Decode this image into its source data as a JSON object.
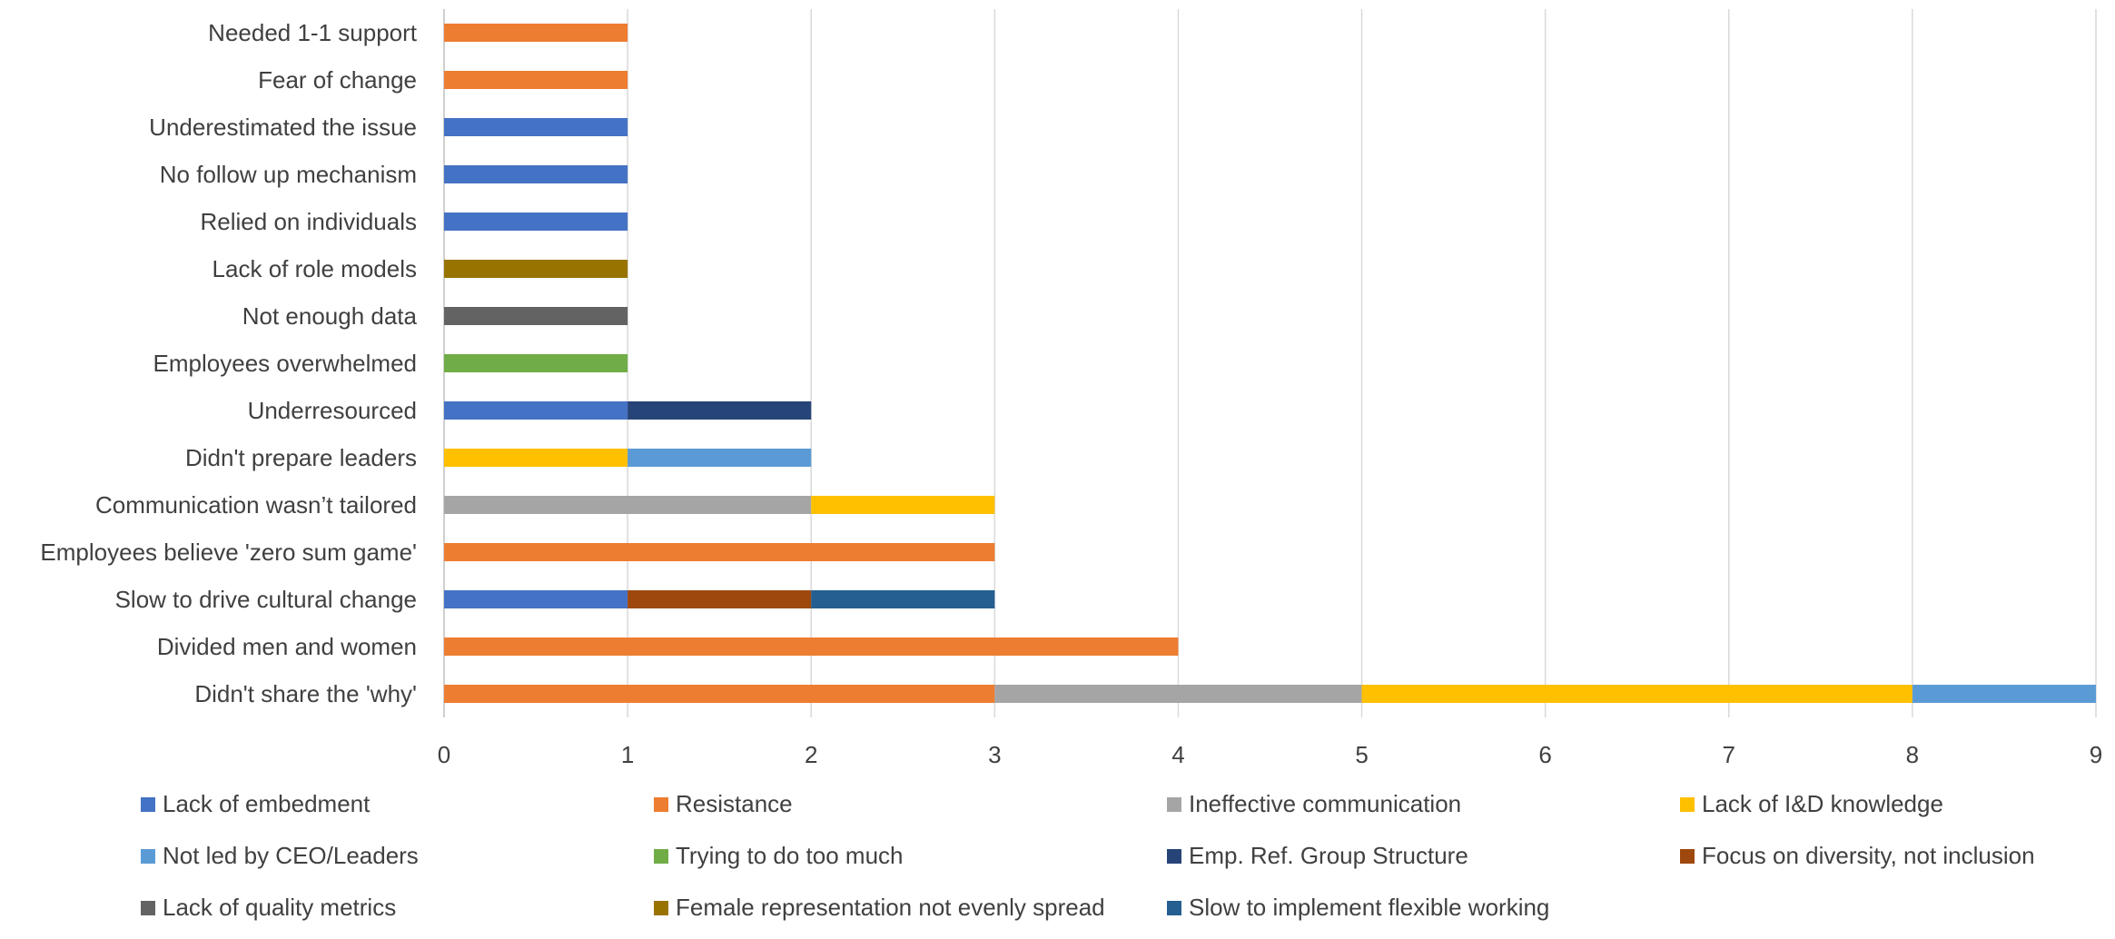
{
  "chart_data": {
    "type": "bar",
    "orientation": "horizontal",
    "stacked": true,
    "categories": [
      "Needed 1-1 support",
      "Fear of change",
      "Underestimated the issue",
      "No follow up mechanism",
      "Relied on individuals",
      "Lack of role models",
      "Not enough data",
      "Employees overwhelmed",
      "Underresourced",
      "Didn't prepare leaders",
      "Communication wasn’t tailored",
      "Employees believe 'zero sum game'",
      "Slow to drive cultural change",
      "Divided men and women",
      "Didn't share the 'why'"
    ],
    "series": [
      {
        "name": "Lack of embedment",
        "color": "#4472C4",
        "values": [
          0,
          0,
          1,
          1,
          1,
          0,
          0,
          0,
          1,
          0,
          0,
          0,
          1,
          0,
          0
        ]
      },
      {
        "name": "Resistance",
        "color": "#ED7D31",
        "values": [
          1,
          1,
          0,
          0,
          0,
          0,
          0,
          0,
          0,
          0,
          0,
          3,
          0,
          4,
          3
        ]
      },
      {
        "name": "Ineffective communication",
        "color": "#A5A5A5",
        "values": [
          0,
          0,
          0,
          0,
          0,
          0,
          0,
          0,
          0,
          0,
          2,
          0,
          0,
          0,
          2
        ]
      },
      {
        "name": "Lack of I&D knowledge",
        "color": "#FFC000",
        "values": [
          0,
          0,
          0,
          0,
          0,
          0,
          0,
          0,
          0,
          1,
          1,
          0,
          0,
          0,
          3
        ]
      },
      {
        "name": "Not led by CEO/Leaders",
        "color": "#5B9BD5",
        "values": [
          0,
          0,
          0,
          0,
          0,
          0,
          0,
          0,
          0,
          1,
          0,
          0,
          0,
          0,
          1
        ]
      },
      {
        "name": "Trying to do too much",
        "color": "#70AD47",
        "values": [
          0,
          0,
          0,
          0,
          0,
          0,
          0,
          1,
          0,
          0,
          0,
          0,
          0,
          0,
          0
        ]
      },
      {
        "name": "Emp. Ref. Group Structure",
        "color": "#264478",
        "values": [
          0,
          0,
          0,
          0,
          0,
          0,
          0,
          0,
          1,
          0,
          0,
          0,
          0,
          0,
          0
        ]
      },
      {
        "name": "Focus on diversity, not inclusion",
        "color": "#9E480E",
        "values": [
          0,
          0,
          0,
          0,
          0,
          0,
          0,
          0,
          0,
          0,
          0,
          0,
          1,
          0,
          0
        ]
      },
      {
        "name": "Lack of quality metrics",
        "color": "#636363",
        "values": [
          0,
          0,
          0,
          0,
          0,
          0,
          1,
          0,
          0,
          0,
          0,
          0,
          0,
          0,
          0
        ]
      },
      {
        "name": "Female representation not evenly spread",
        "color": "#997300",
        "values": [
          0,
          0,
          0,
          0,
          0,
          1,
          0,
          0,
          0,
          0,
          0,
          0,
          0,
          0,
          0
        ]
      },
      {
        "name": "Slow to implement flexible working",
        "color": "#255E91",
        "values": [
          0,
          0,
          0,
          0,
          0,
          0,
          0,
          0,
          0,
          0,
          0,
          0,
          1,
          0,
          0
        ]
      }
    ],
    "xlim": [
      0,
      9
    ],
    "xticks": [
      "0",
      "1",
      "2",
      "3",
      "4",
      "5",
      "6",
      "7",
      "8",
      "9"
    ],
    "grid": "vertical",
    "legend_position": "bottom"
  }
}
